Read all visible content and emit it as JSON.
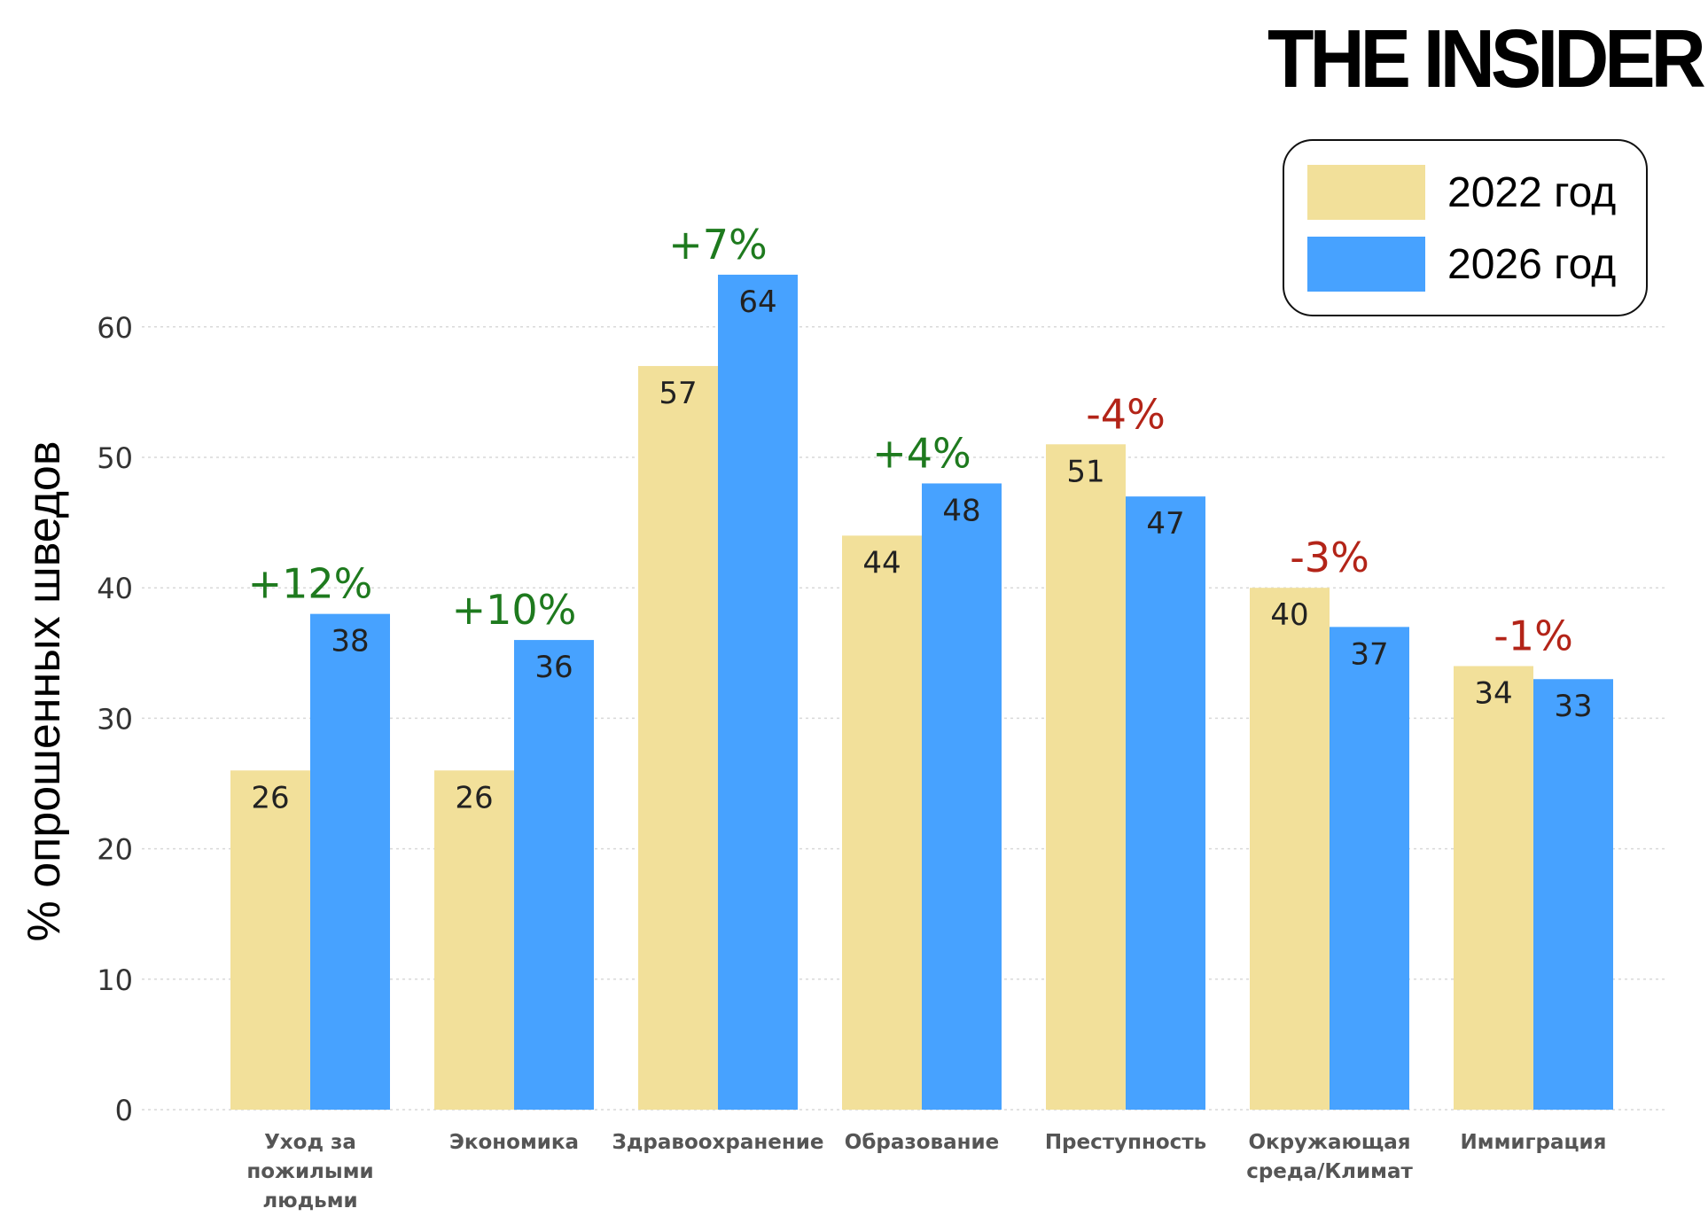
{
  "brand": "THE INSIDER",
  "chart_data": {
    "type": "bar",
    "title": "",
    "ylabel": "% опрошенных шведов",
    "xlabel": "",
    "ylim": [
      0,
      66
    ],
    "yticks": [
      0,
      10,
      20,
      30,
      40,
      50,
      60
    ],
    "grid": true,
    "legend_position": "top-right",
    "categories": [
      [
        "Уход за",
        "пожилыми",
        "людьми"
      ],
      [
        "Экономика"
      ],
      [
        "Здравоохранение"
      ],
      [
        "Образование"
      ],
      [
        "Преступность"
      ],
      [
        "Окружающая",
        "среда/Климат"
      ],
      [
        "Иммиграция"
      ]
    ],
    "series": [
      {
        "name": "2022 год",
        "color": "#f2e09a",
        "values": [
          26,
          26,
          57,
          44,
          51,
          40,
          34
        ]
      },
      {
        "name": "2026 год",
        "color": "#47a2ff",
        "values": [
          38,
          36,
          64,
          48,
          47,
          37,
          33
        ]
      }
    ],
    "changes": [
      "+12%",
      "+10%",
      "+7%",
      "+4%",
      "-4%",
      "-3%",
      "-1%"
    ],
    "change_colors": {
      "positive": "#1e7a1e",
      "negative": "#b32418"
    }
  }
}
